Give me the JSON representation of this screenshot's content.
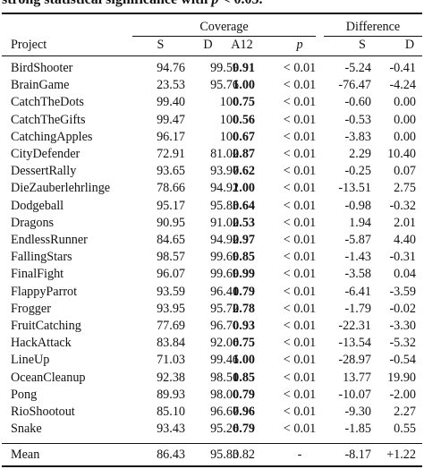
{
  "caption": {
    "text": "strong statistical significance with ",
    "var": "p",
    "tail": " < 0.05."
  },
  "header": {
    "group_coverage": "Coverage",
    "group_difference": "Difference",
    "project": "Project",
    "cov_s": "S",
    "cov_d": "D",
    "cov_a12": "A12",
    "cov_p": "p",
    "diff_s": "S",
    "diff_d": "D"
  },
  "rows": [
    {
      "project": "BirdShooter",
      "s": "94.76",
      "d": "99.59",
      "a12": "0.91",
      "bold": true,
      "p": "< 0.01",
      "ds": "-5.24",
      "dd": "-0.41"
    },
    {
      "project": "BrainGame",
      "s": "23.53",
      "d": "95.76",
      "a12": "1.00",
      "bold": true,
      "p": "< 0.01",
      "ds": "-76.47",
      "dd": "-4.24"
    },
    {
      "project": "CatchTheDots",
      "s": "99.40",
      "d": "100",
      "a12": "0.75",
      "bold": true,
      "p": "< 0.01",
      "ds": "-0.60",
      "dd": "0.00"
    },
    {
      "project": "CatchTheGifts",
      "s": "99.47",
      "d": "100",
      "a12": "0.56",
      "bold": true,
      "p": "< 0.01",
      "ds": "-0.53",
      "dd": "0.00"
    },
    {
      "project": "CatchingApples",
      "s": "96.17",
      "d": "100",
      "a12": "0.67",
      "bold": true,
      "p": "< 0.01",
      "ds": "-3.83",
      "dd": "0.00"
    },
    {
      "project": "CityDefender",
      "s": "72.91",
      "d": "81.02",
      "a12": "0.87",
      "bold": true,
      "p": "< 0.01",
      "ds": "2.29",
      "dd": "10.40"
    },
    {
      "project": "DessertRally",
      "s": "93.65",
      "d": "93.97",
      "a12": "0.62",
      "bold": true,
      "p": "< 0.01",
      "ds": "-0.25",
      "dd": "0.07"
    },
    {
      "project": "DieZauberlehrlinge",
      "s": "78.66",
      "d": "94.92",
      "a12": "1.00",
      "bold": true,
      "p": "< 0.01",
      "ds": "-13.51",
      "dd": "2.75"
    },
    {
      "project": "Dodgeball",
      "s": "95.17",
      "d": "95.83",
      "a12": "0.64",
      "bold": true,
      "p": "< 0.01",
      "ds": "-0.98",
      "dd": "-0.32"
    },
    {
      "project": "Dragons",
      "s": "90.95",
      "d": "91.02",
      "a12": "0.53",
      "bold": true,
      "p": "< 0.01",
      "ds": "1.94",
      "dd": "2.01"
    },
    {
      "project": "EndlessRunner",
      "s": "84.65",
      "d": "94.92",
      "a12": "0.97",
      "bold": true,
      "p": "< 0.01",
      "ds": "-5.87",
      "dd": "4.40"
    },
    {
      "project": "FallingStars",
      "s": "98.57",
      "d": "99.69",
      "a12": "0.85",
      "bold": true,
      "p": "< 0.01",
      "ds": "-1.43",
      "dd": "-0.31"
    },
    {
      "project": "FinalFight",
      "s": "96.07",
      "d": "99.69",
      "a12": "0.99",
      "bold": true,
      "p": "< 0.01",
      "ds": "-3.58",
      "dd": "0.04"
    },
    {
      "project": "FlappyParrot",
      "s": "93.59",
      "d": "96.41",
      "a12": "0.79",
      "bold": true,
      "p": "< 0.01",
      "ds": "-6.41",
      "dd": "-3.59"
    },
    {
      "project": "Frogger",
      "s": "93.95",
      "d": "95.72",
      "a12": "0.78",
      "bold": true,
      "p": "< 0.01",
      "ds": "-1.79",
      "dd": "-0.02"
    },
    {
      "project": "FruitCatching",
      "s": "77.69",
      "d": "96.70",
      "a12": "0.93",
      "bold": true,
      "p": "< 0.01",
      "ds": "-22.31",
      "dd": "-3.30"
    },
    {
      "project": "HackAttack",
      "s": "83.84",
      "d": "92.06",
      "a12": "0.75",
      "bold": true,
      "p": "< 0.01",
      "ds": "-13.54",
      "dd": "-5.32"
    },
    {
      "project": "LineUp",
      "s": "71.03",
      "d": "99.46",
      "a12": "1.00",
      "bold": true,
      "p": "< 0.01",
      "ds": "-28.97",
      "dd": "-0.54"
    },
    {
      "project": "OceanCleanup",
      "s": "92.38",
      "d": "98.51",
      "a12": "0.85",
      "bold": true,
      "p": "< 0.01",
      "ds": "13.77",
      "dd": "19.90"
    },
    {
      "project": "Pong",
      "s": "89.93",
      "d": "98.00",
      "a12": "0.79",
      "bold": true,
      "p": "< 0.01",
      "ds": "-10.07",
      "dd": "-2.00"
    },
    {
      "project": "RioShootout",
      "s": "85.10",
      "d": "96.67",
      "a12": "0.96",
      "bold": true,
      "p": "< 0.01",
      "ds": "-9.30",
      "dd": "2.27"
    },
    {
      "project": "Snake",
      "s": "93.43",
      "d": "95.26",
      "a12": "0.79",
      "bold": true,
      "p": "< 0.01",
      "ds": "-1.85",
      "dd": "0.55"
    }
  ],
  "mean": {
    "project": "Mean",
    "s": "86.43",
    "d": "95.83",
    "a12": "0.82",
    "p": "-",
    "ds": "-8.17",
    "dd": "+1.22"
  }
}
